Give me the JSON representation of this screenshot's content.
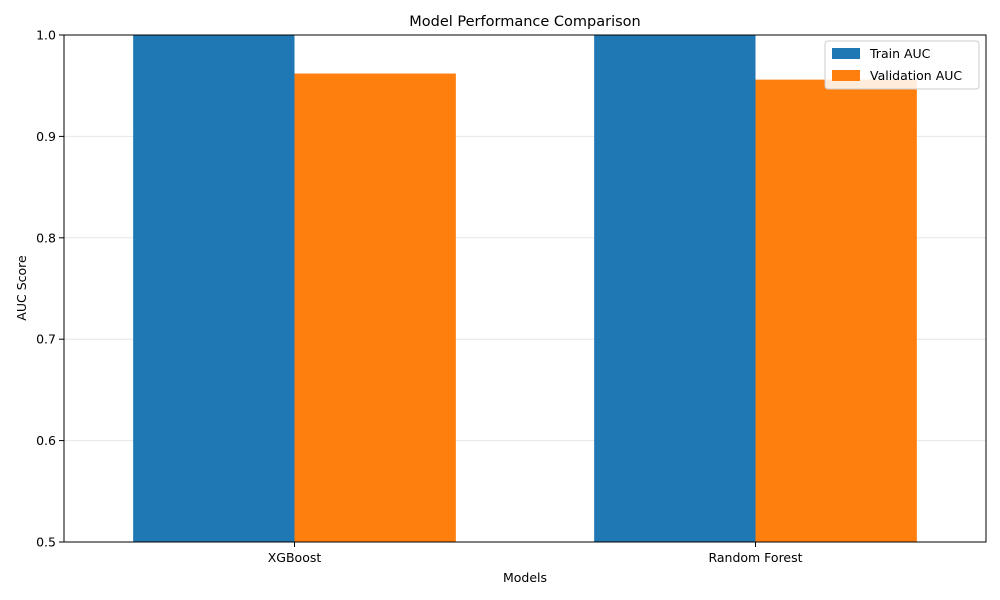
{
  "chart_data": {
    "type": "bar",
    "title": "Model Performance Comparison",
    "xlabel": "Models",
    "ylabel": "AUC Score",
    "categories": [
      "XGBoost",
      "Random Forest"
    ],
    "series": [
      {
        "name": "Train AUC",
        "values": [
          1.0,
          1.0
        ],
        "color": "#1f77b4"
      },
      {
        "name": "Validation AUC",
        "values": [
          0.962,
          0.956
        ],
        "color": "#ff7f0e"
      }
    ],
    "ylim": [
      0.5,
      1.0
    ],
    "yticks": [
      "0.5",
      "0.6",
      "0.7",
      "0.8",
      "0.9",
      "1.0"
    ],
    "grid": "horizontal",
    "legend_position": "top-right"
  }
}
